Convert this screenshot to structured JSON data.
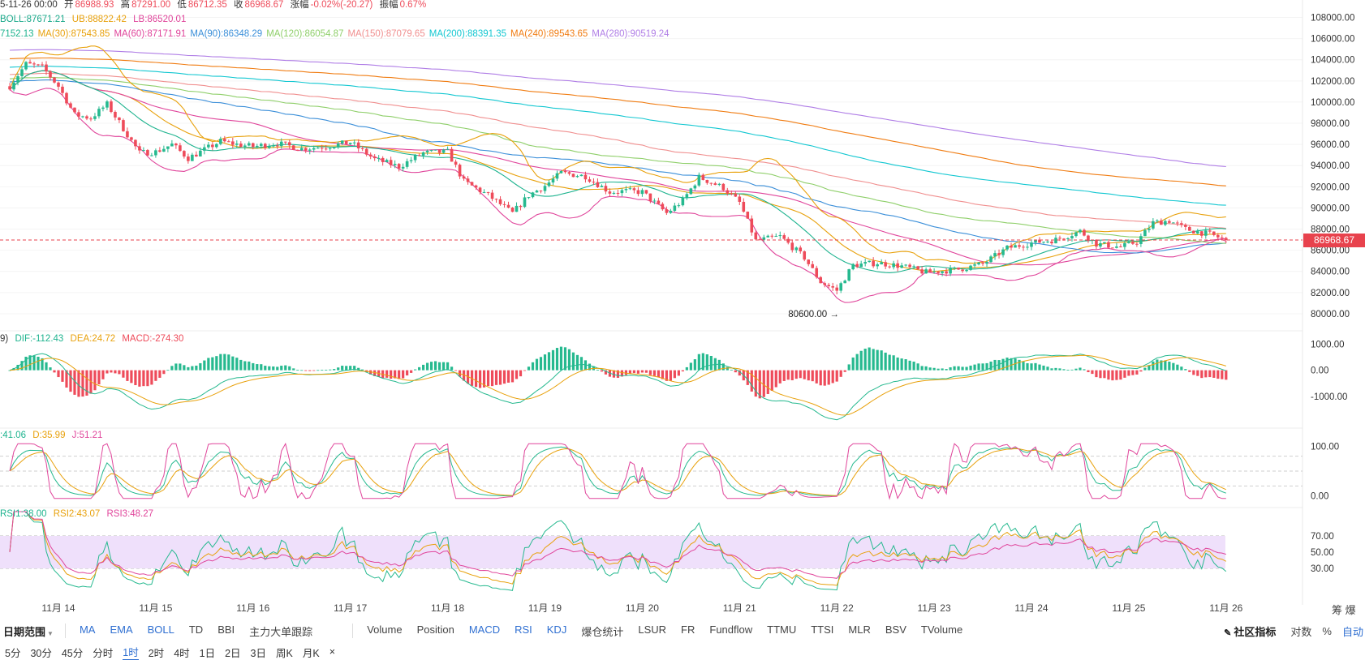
{
  "header": {
    "time": "5-11-26 00:00",
    "open_label": "开",
    "open": "86988.93",
    "high_label": "高",
    "high": "87291.00",
    "low_label": "低",
    "low": "86712.35",
    "close_label": "收",
    "close": "86968.67",
    "change_label": "涨幅",
    "change": "-0.02%(-20.27)",
    "amp_label": "振幅",
    "amp": "0.67%"
  },
  "boll": {
    "mid": "BOLL:87671.21",
    "ub": "UB:88822.42",
    "lb": "LB:86520.01"
  },
  "ma_legend": [
    {
      "text": "7152.13",
      "color": "#1db38e"
    },
    {
      "text": "MA(30):87543.85",
      "color": "#e8a10c"
    },
    {
      "text": "MA(60):87171.91",
      "color": "#e0459b"
    },
    {
      "text": "MA(90):86348.29",
      "color": "#3b8fd9"
    },
    {
      "text": "MA(120):86054.87",
      "color": "#8fcf6a"
    },
    {
      "text": "MA(150):87079.65",
      "color": "#f08f8f"
    },
    {
      "text": "MA(200):88391.35",
      "color": "#12c7d1"
    },
    {
      "text": "MA(240):89543.65",
      "color": "#f07c12"
    },
    {
      "text": "MA(280):90519.24",
      "color": "#b07ee6"
    }
  ],
  "macd_legend": {
    "prefix": "9)",
    "dif": "DIF:-112.43",
    "dea": "DEA:24.72",
    "macd": "MACD:-274.30"
  },
  "kdj_legend": {
    "k": ":41.06",
    "d": "D:35.99",
    "j": "J:51.21"
  },
  "rsi_legend": {
    "rsi1": "RSI1:38.00",
    "rsi2": "RSI2:43.07",
    "rsi3": "RSI3:48.27"
  },
  "current_price": "86968.67",
  "low_annotation": "80600.00",
  "price_axis": [
    "108000.00",
    "106000.00",
    "104000.00",
    "102000.00",
    "100000.00",
    "98000.00",
    "96000.00",
    "94000.00",
    "92000.00",
    "90000.00",
    "88000.00",
    "86000.00",
    "84000.00",
    "82000.00",
    "80000.00"
  ],
  "macd_axis": [
    "1000.00",
    "0.00",
    "-1000.00"
  ],
  "kdj_axis": [
    "100.00",
    "0.00"
  ],
  "rsi_axis": [
    "70.00",
    "50.00",
    "30.00"
  ],
  "x_axis": [
    "11月 14",
    "11月 15",
    "11月 16",
    "11月 17",
    "11月 18",
    "11月 19",
    "11月 20",
    "11月 21",
    "11月 22",
    "11月 23",
    "11月 24",
    "11月 25",
    "11月 26"
  ],
  "y_offset_label": "筹 爆",
  "toolbar": {
    "range_label": "日期范围",
    "main_indicators": [
      "MA",
      "EMA",
      "BOLL",
      "TD",
      "BBI",
      "主力大单跟踪"
    ],
    "sub_indicators": [
      {
        "label": "Volume",
        "active": false
      },
      {
        "label": "Position",
        "active": false
      },
      {
        "label": "MACD",
        "active": true
      },
      {
        "label": "RSI",
        "active": true
      },
      {
        "label": "KDJ",
        "active": true
      },
      {
        "label": "爆仓统计",
        "active": false
      },
      {
        "label": "LSUR",
        "active": false
      },
      {
        "label": "FR",
        "active": false
      },
      {
        "label": "Fundflow",
        "active": false
      },
      {
        "label": "TTMU",
        "active": false
      },
      {
        "label": "TTSI",
        "active": false
      },
      {
        "label": "MLR",
        "active": false
      },
      {
        "label": "BSV",
        "active": false
      },
      {
        "label": "TVolume",
        "active": false
      }
    ],
    "community": "社区指标",
    "log": "对数",
    "pct": "%",
    "auto": "自动"
  },
  "timeframes": [
    "5分",
    "30分",
    "45分",
    "分时",
    "1时",
    "2时",
    "4时",
    "1日",
    "2日",
    "3日",
    "周K",
    "月K"
  ],
  "selected_timeframe": "1时",
  "colors": {
    "up": "#26b98f",
    "down": "#ee4b5a",
    "price_line": "#e8424d",
    "rsi_band": "#efe0fb"
  },
  "chart_data": {
    "type": "candlestick",
    "interval": "1时",
    "x_range": [
      "11月 13",
      "11月 26"
    ],
    "price_ylim": [
      79000,
      108500
    ],
    "last_close": 86968.67,
    "low_marker": 80600.0,
    "close_path": [
      {
        "x": "11月 13 12:00",
        "y": 101500
      },
      {
        "x": "11月 13 16:00",
        "y": 103600
      },
      {
        "x": "11月 13 20:00",
        "y": 103300
      },
      {
        "x": "11月 14 00:00",
        "y": 101500
      },
      {
        "x": "11月 14 04:00",
        "y": 98800
      },
      {
        "x": "11月 14 08:00",
        "y": 98500
      },
      {
        "x": "11月 14 12:00",
        "y": 99800
      },
      {
        "x": "11月 14 16:00",
        "y": 97500
      },
      {
        "x": "11月 14 20:00",
        "y": 95200
      },
      {
        "x": "11月 15 00:00",
        "y": 95300
      },
      {
        "x": "11月 15 04:00",
        "y": 96000
      },
      {
        "x": "11月 15 08:00",
        "y": 94700
      },
      {
        "x": "11月 15 12:00",
        "y": 95500
      },
      {
        "x": "11月 15 16:00",
        "y": 96300
      },
      {
        "x": "11月 15 20:00",
        "y": 96000
      },
      {
        "x": "11月 16 00:00",
        "y": 95800
      },
      {
        "x": "11月 16 06:00",
        "y": 96100
      },
      {
        "x": "11月 16 12:00",
        "y": 95600
      },
      {
        "x": "11月 16 18:00",
        "y": 95800
      },
      {
        "x": "11月 17 00:00",
        "y": 96200
      },
      {
        "x": "11月 17 06:00",
        "y": 94600
      },
      {
        "x": "11月 17 12:00",
        "y": 93900
      },
      {
        "x": "11月 17 18:00",
        "y": 95200
      },
      {
        "x": "11月 18 00:00",
        "y": 95300
      },
      {
        "x": "11月 18 04:00",
        "y": 92500
      },
      {
        "x": "11月 18 10:00",
        "y": 91200
      },
      {
        "x": "11月 18 16:00",
        "y": 89500
      },
      {
        "x": "11月 18 20:00",
        "y": 91200
      },
      {
        "x": "11月 19 00:00",
        "y": 92100
      },
      {
        "x": "11月 19 04:00",
        "y": 93300
      },
      {
        "x": "11月 19 10:00",
        "y": 93000
      },
      {
        "x": "11月 19 16:00",
        "y": 91500
      },
      {
        "x": "11月 19 20:00",
        "y": 91600
      },
      {
        "x": "11月 20 00:00",
        "y": 91500
      },
      {
        "x": "11月 20 06:00",
        "y": 89500
      },
      {
        "x": "11月 20 10:00",
        "y": 90700
      },
      {
        "x": "11月 20 14:00",
        "y": 92900
      },
      {
        "x": "11月 20 20:00",
        "y": 91900
      },
      {
        "x": "11月 21 00:00",
        "y": 90500
      },
      {
        "x": "11月 21 04:00",
        "y": 86900
      },
      {
        "x": "11月 21 10:00",
        "y": 87300
      },
      {
        "x": "11月 21 16:00",
        "y": 85300
      },
      {
        "x": "11月 21 20:00",
        "y": 83000
      },
      {
        "x": "11月 22 00:00",
        "y": 82200
      },
      {
        "x": "11月 22 04:00",
        "y": 84600
      },
      {
        "x": "11月 22 10:00",
        "y": 84800
      },
      {
        "x": "11月 22 16:00",
        "y": 84500
      },
      {
        "x": "11月 22 22:00",
        "y": 83900
      },
      {
        "x": "11月 23 06:00",
        "y": 84200
      },
      {
        "x": "11月 23 12:00",
        "y": 84700
      },
      {
        "x": "11月 23 18:00",
        "y": 86200
      },
      {
        "x": "11月 24 00:00",
        "y": 86700
      },
      {
        "x": "11月 24 06:00",
        "y": 87000
      },
      {
        "x": "11月 24 12:00",
        "y": 87800
      },
      {
        "x": "11月 24 16:00",
        "y": 86600
      },
      {
        "x": "11月 24 22:00",
        "y": 86300
      },
      {
        "x": "11月 25 02:00",
        "y": 86800
      },
      {
        "x": "11月 25 06:00",
        "y": 88600
      },
      {
        "x": "11月 25 10:00",
        "y": 88800
      },
      {
        "x": "11月 25 14:00",
        "y": 88000
      },
      {
        "x": "11月 25 20:00",
        "y": 87500
      },
      {
        "x": "11月 26 00:00",
        "y": 86969
      }
    ],
    "macd_ylim": [
      -2000,
      1200
    ],
    "kdj_ylim": [
      -20,
      120
    ],
    "rsi_ylim": [
      5,
      95
    ]
  }
}
